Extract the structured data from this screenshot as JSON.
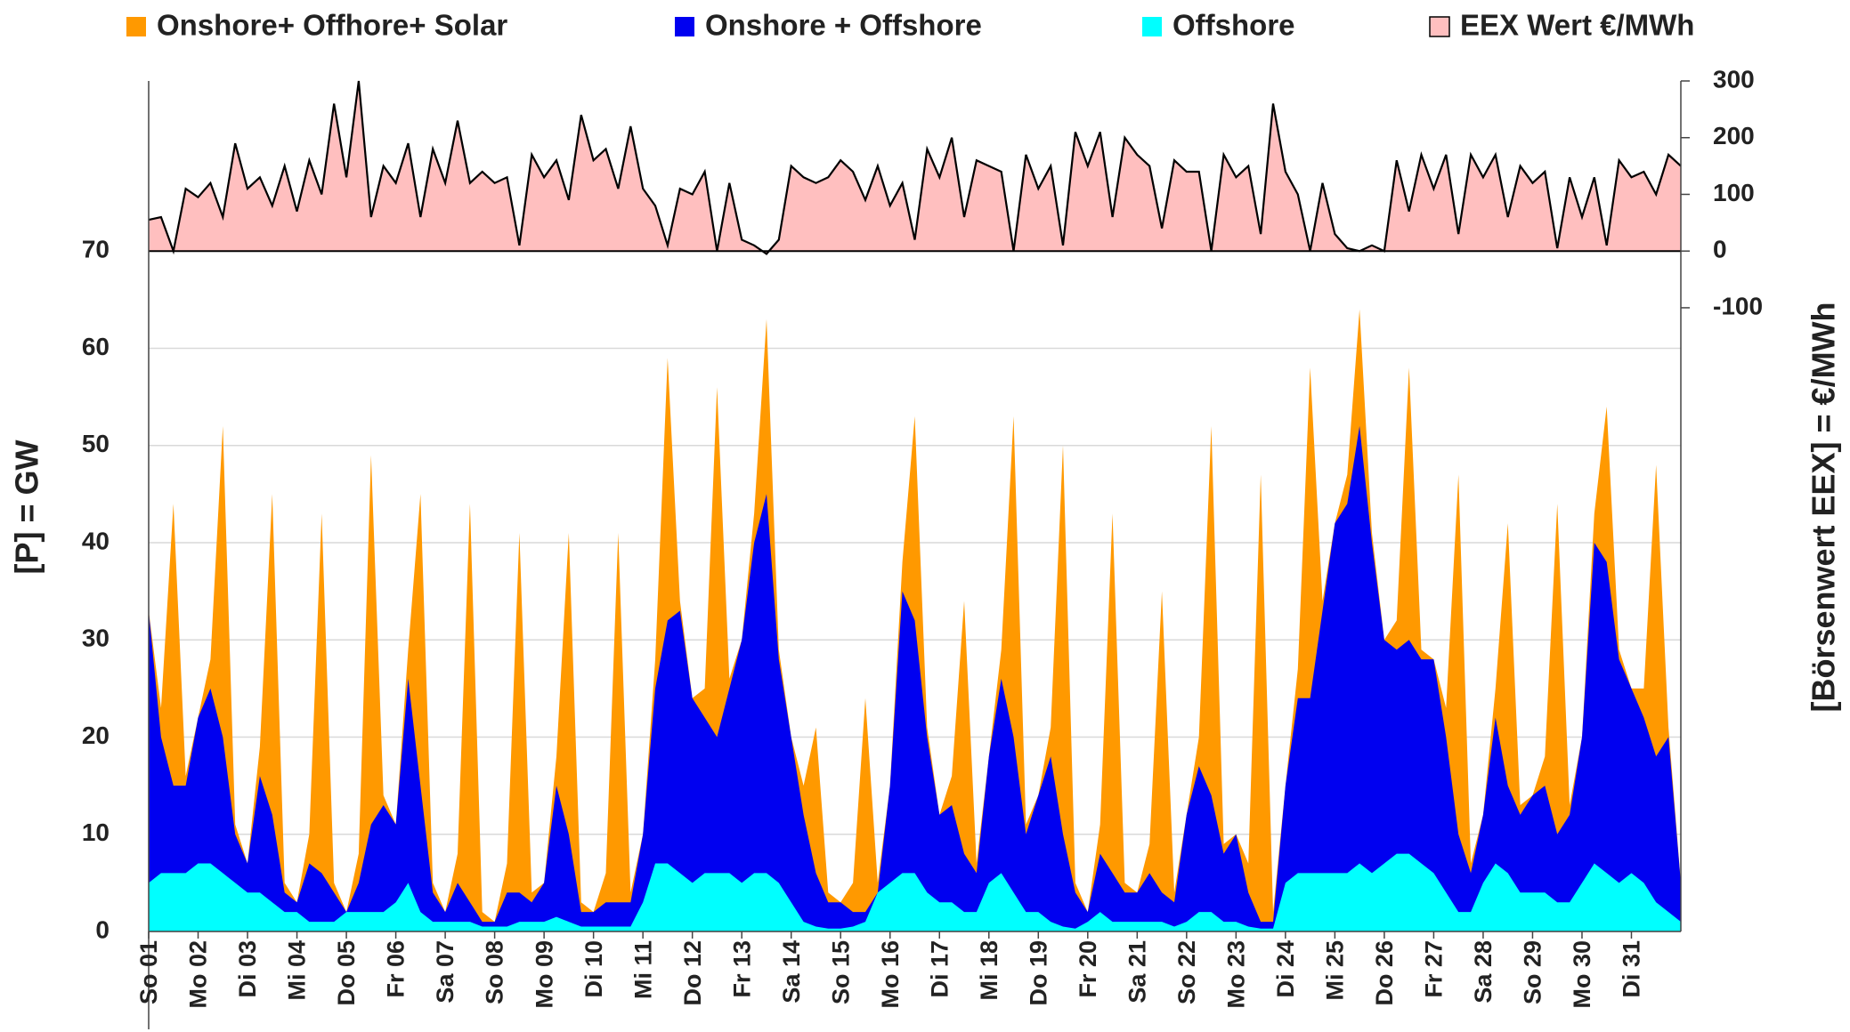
{
  "chart_data": {
    "type": "area",
    "x": [
      0,
      0.25,
      0.5,
      0.75,
      1,
      1.25,
      1.5,
      1.75,
      2,
      2.25,
      2.5,
      2.75,
      3,
      3.25,
      3.5,
      3.75,
      4,
      4.25,
      4.5,
      4.75,
      5,
      5.25,
      5.5,
      5.75,
      6,
      6.25,
      6.5,
      6.75,
      7,
      7.25,
      7.5,
      7.75,
      8,
      8.25,
      8.5,
      8.75,
      9,
      9.25,
      9.5,
      9.75,
      10,
      10.25,
      10.5,
      10.75,
      11,
      11.25,
      11.5,
      11.75,
      12,
      12.25,
      12.5,
      12.75,
      13,
      13.25,
      13.5,
      13.75,
      14,
      14.25,
      14.5,
      14.75,
      15,
      15.25,
      15.5,
      15.75,
      16,
      16.25,
      16.5,
      16.75,
      17,
      17.25,
      17.5,
      17.75,
      18,
      18.25,
      18.5,
      18.75,
      19,
      19.25,
      19.5,
      19.75,
      20,
      20.25,
      20.5,
      20.75,
      21,
      21.25,
      21.5,
      21.75,
      22,
      22.25,
      22.5,
      22.75,
      23,
      23.25,
      23.5,
      23.75,
      24,
      24.25,
      24.5,
      24.75,
      25,
      25.25,
      25.5,
      25.75,
      26,
      26.25,
      26.5,
      26.75,
      27,
      27.25,
      27.5,
      27.75,
      28,
      28.25,
      28.5,
      28.75,
      29,
      29.25,
      29.5,
      29.75,
      30,
      30.25,
      30.5,
      30.75,
      31
    ],
    "series": [
      {
        "name": "Onshore+ Offhore+ Solar",
        "color": "#ff9900",
        "values": [
          33,
          23,
          44,
          16,
          22,
          28,
          52,
          11,
          7,
          19,
          45,
          5,
          3,
          10,
          43,
          5,
          2,
          8,
          49,
          14,
          11,
          29,
          45,
          5,
          2,
          8,
          44,
          2,
          1,
          7,
          41,
          4,
          5,
          18,
          41,
          3,
          2,
          6,
          41,
          4,
          10,
          28,
          59,
          34,
          24,
          25,
          56,
          26,
          30,
          43,
          63,
          29,
          20,
          15,
          21,
          4,
          3,
          5,
          24,
          5,
          15,
          38,
          53,
          21,
          12,
          16,
          34,
          7,
          18,
          29,
          53,
          11,
          14,
          21,
          50,
          5,
          2,
          11,
          43,
          5,
          4,
          9,
          35,
          4,
          12,
          20,
          52,
          9,
          10,
          7,
          47,
          2,
          15,
          27,
          58,
          34,
          42,
          47,
          64,
          41,
          30,
          32,
          58,
          29,
          28,
          23,
          47,
          7,
          12,
          25,
          42,
          13,
          14,
          18,
          44,
          13,
          20,
          43,
          54,
          29,
          25,
          25,
          48,
          21,
          5
        ]
      },
      {
        "name": "Onshore + Offshore",
        "color": "#0000f0",
        "values": [
          33,
          20,
          15,
          15,
          22,
          25,
          20,
          10,
          7,
          16,
          12,
          4,
          3,
          7,
          6,
          4,
          2,
          5,
          11,
          13,
          11,
          26,
          15,
          4,
          2,
          5,
          3,
          1,
          1,
          4,
          4,
          3,
          5,
          15,
          10,
          2,
          2,
          3,
          3,
          3,
          10,
          25,
          32,
          33,
          24,
          22,
          20,
          25,
          30,
          40,
          45,
          28,
          20,
          12,
          6,
          3,
          3,
          2,
          2,
          4,
          15,
          35,
          32,
          20,
          12,
          13,
          8,
          6,
          18,
          26,
          20,
          10,
          14,
          18,
          10,
          4,
          2,
          8,
          6,
          4,
          4,
          6,
          4,
          3,
          12,
          17,
          14,
          8,
          10,
          4,
          1,
          1,
          15,
          24,
          24,
          33,
          42,
          44,
          52,
          40,
          30,
          29,
          30,
          28,
          28,
          20,
          10,
          6,
          12,
          22,
          15,
          12,
          14,
          15,
          10,
          12,
          20,
          40,
          38,
          28,
          25,
          22,
          18,
          20,
          5
        ]
      },
      {
        "name": "Offshore",
        "color": "#00ffff",
        "values": [
          5,
          6,
          6,
          6,
          7,
          7,
          6,
          5,
          4,
          4,
          3,
          2,
          2,
          1,
          1,
          1,
          2,
          2,
          2,
          2,
          3,
          5,
          2,
          1,
          1,
          1,
          1,
          0.5,
          0.5,
          0.5,
          1,
          1,
          1,
          1.5,
          1,
          0.5,
          0.5,
          0.5,
          0.5,
          0.5,
          3,
          7,
          7,
          6,
          5,
          6,
          6,
          6,
          5,
          6,
          6,
          5,
          3,
          1,
          0.5,
          0.3,
          0.3,
          0.5,
          1,
          4,
          5,
          6,
          6,
          4,
          3,
          3,
          2,
          2,
          5,
          6,
          4,
          2,
          2,
          1,
          0.5,
          0.3,
          1,
          2,
          1,
          1,
          1,
          1,
          1,
          0.5,
          1,
          2,
          2,
          1,
          1,
          0.5,
          0.3,
          0.3,
          5,
          6,
          6,
          6,
          6,
          6,
          7,
          6,
          7,
          8,
          8,
          7,
          6,
          4,
          2,
          2,
          5,
          7,
          6,
          4,
          4,
          4,
          3,
          3,
          5,
          7,
          6,
          5,
          6,
          5,
          3,
          2,
          1
        ]
      },
      {
        "name": "EEX Wert €/MWh",
        "color": "#ffbfbf",
        "axis": "y2",
        "values": [
          55,
          60,
          0,
          110,
          95,
          120,
          60,
          190,
          110,
          130,
          80,
          150,
          70,
          160,
          100,
          260,
          130,
          300,
          60,
          150,
          120,
          190,
          60,
          180,
          120,
          230,
          120,
          140,
          120,
          130,
          10,
          170,
          130,
          160,
          90,
          240,
          160,
          180,
          110,
          220,
          110,
          80,
          10,
          110,
          100,
          140,
          0,
          120,
          20,
          10,
          -5,
          20,
          150,
          130,
          120,
          130,
          160,
          140,
          90,
          150,
          80,
          120,
          20,
          180,
          130,
          200,
          60,
          160,
          150,
          140,
          0,
          170,
          110,
          150,
          10,
          210,
          150,
          210,
          60,
          200,
          170,
          150,
          40,
          160,
          140,
          140,
          0,
          170,
          130,
          150,
          30,
          260,
          140,
          100,
          0,
          120,
          30,
          5,
          0,
          10,
          0,
          160,
          70,
          170,
          110,
          170,
          30,
          170,
          130,
          170,
          60,
          150,
          120,
          140,
          5,
          130,
          60,
          130,
          10,
          160,
          130,
          140,
          100,
          170,
          150
        ]
      }
    ],
    "y_label": "[P]  =  GW",
    "y2_label": "[Börsenwert  EEX]  =  €/MWh",
    "xlim": [
      0,
      31
    ],
    "xticks": [
      {
        "value": 0,
        "label": "So 01"
      },
      {
        "value": 1,
        "label": "Mo 02"
      },
      {
        "value": 2,
        "label": "Di 03"
      },
      {
        "value": 3,
        "label": "Mi 04"
      },
      {
        "value": 4,
        "label": "Do 05"
      },
      {
        "value": 5,
        "label": "Fr 06"
      },
      {
        "value": 6,
        "label": "Sa 07"
      },
      {
        "value": 7,
        "label": "So 08"
      },
      {
        "value": 8,
        "label": "Mo 09"
      },
      {
        "value": 9,
        "label": "Di 10"
      },
      {
        "value": 10,
        "label": "Mi 11"
      },
      {
        "value": 11,
        "label": "Do 12"
      },
      {
        "value": 12,
        "label": "Fr 13"
      },
      {
        "value": 13,
        "label": "Sa 14"
      },
      {
        "value": 14,
        "label": "So 15"
      },
      {
        "value": 15,
        "label": "Mo 16"
      },
      {
        "value": 16,
        "label": "Di 17"
      },
      {
        "value": 17,
        "label": "Mi 18"
      },
      {
        "value": 18,
        "label": "Do 19"
      },
      {
        "value": 19,
        "label": "Fr 20"
      },
      {
        "value": 20,
        "label": "Sa 21"
      },
      {
        "value": 21,
        "label": "So 22"
      },
      {
        "value": 22,
        "label": "Mo 23"
      },
      {
        "value": 23,
        "label": "Di 24"
      },
      {
        "value": 24,
        "label": "Mi 25"
      },
      {
        "value": 25,
        "label": "Do 26"
      },
      {
        "value": 26,
        "label": "Fr 27"
      },
      {
        "value": 27,
        "label": "Sa 28"
      },
      {
        "value": 28,
        "label": "So 29"
      },
      {
        "value": 29,
        "label": "Mo 30"
      },
      {
        "value": 30,
        "label": "Di 31"
      }
    ],
    "ylim": [
      0,
      87.5
    ],
    "yticks": [
      0,
      10,
      20,
      30,
      40,
      50,
      60,
      70
    ],
    "y2lim": [
      -1200,
      300
    ],
    "y2ticks": [
      300,
      200,
      100,
      0,
      -100
    ],
    "y2_negative_tick_color": "#ff0000",
    "line_color": "#000000",
    "grid": true
  }
}
